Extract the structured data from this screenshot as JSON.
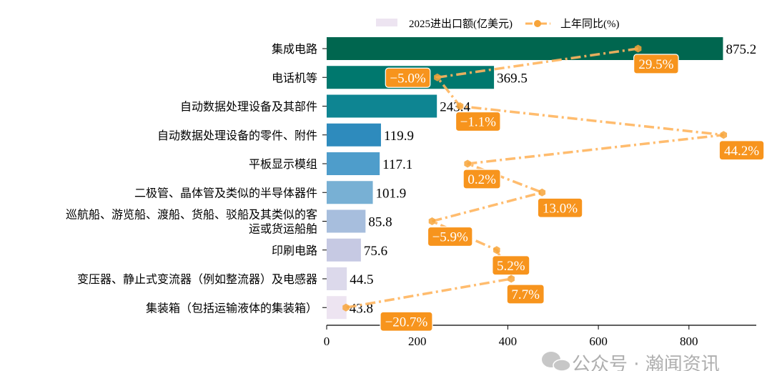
{
  "chart_data": {
    "type": "bar",
    "orientation": "horizontal",
    "categories": [
      "集成电路",
      "电话机等",
      "自动数据处理设备及其部件",
      "自动数据处理设备的零件、附件",
      "平板显示模组",
      "二极管、晶体管及类似的半导体器件",
      "巡航船、游览船、渡船、货船、驳船及其类似的客\n运或货运船舶",
      "印刷电路",
      "变压器、静止式变流器（例如整流器）及电感器",
      "集装箱（包括运输液体的集装箱）"
    ],
    "series": [
      {
        "name": "2025进出口额(亿美元)",
        "type": "bar",
        "values": [
          875.2,
          369.5,
          243.4,
          119.9,
          117.1,
          101.9,
          85.8,
          75.6,
          44.5,
          43.8
        ],
        "colors": [
          "#00664f",
          "#00786e",
          "#0e8592",
          "#2e8bbd",
          "#4e9dcb",
          "#78b0d4",
          "#a7bedd",
          "#c6c9e3",
          "#dcd9eb",
          "#ede4f1"
        ]
      },
      {
        "name": "上年同比(%)",
        "type": "line",
        "values": [
          29.5,
          -5.0,
          -1.1,
          44.2,
          0.2,
          13.0,
          -5.9,
          5.2,
          7.7,
          -20.7
        ],
        "labels": [
          "29.5%",
          "−5.0%",
          "−1.1%",
          "44.2%",
          "0.2%",
          "13.0%",
          "−5.9%",
          "5.2%",
          "7.7%",
          "−20.7%"
        ],
        "color": "#ffb55e",
        "label_bg": "#f7941d",
        "marker": "hexagon",
        "linestyle": "dash-dot"
      }
    ],
    "xlim": [
      0,
      950
    ],
    "xticks": [
      "0",
      "200",
      "400",
      "600",
      "800"
    ],
    "xtick_values": [
      0,
      200,
      400,
      600,
      800
    ],
    "legend_position": "top",
    "grid": false
  },
  "watermark": "公众号 · 瀚闻资讯"
}
